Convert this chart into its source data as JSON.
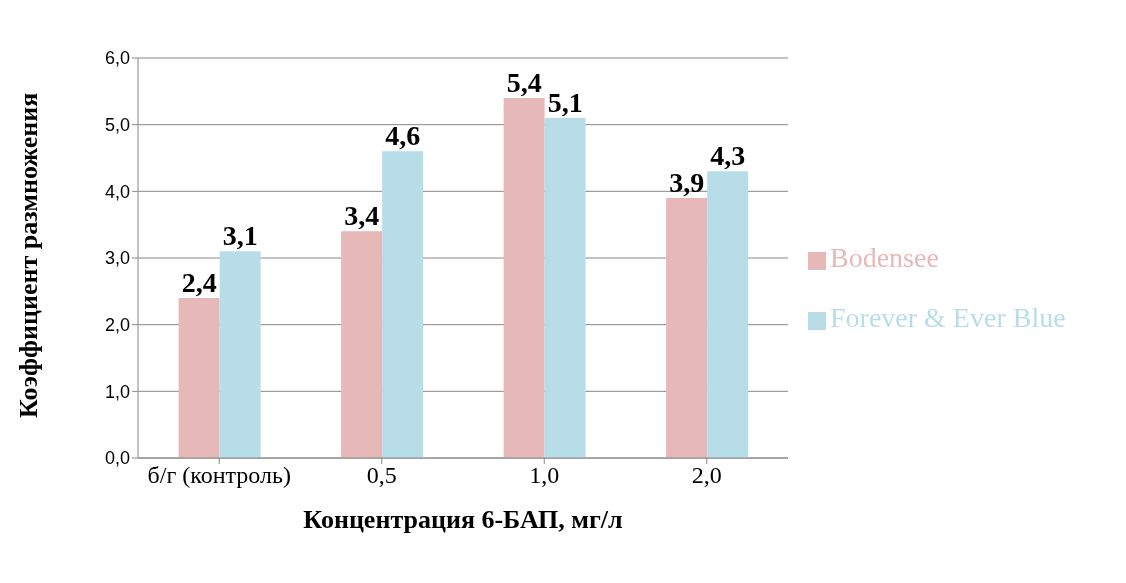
{
  "chart_data": {
    "type": "bar",
    "xlabel": "Концентрация 6-БАП, мг/л",
    "ylabel": "Коэффициент размножения",
    "categories": [
      "б/г (контроль)",
      "0,5",
      "1,0",
      "2,0"
    ],
    "series": [
      {
        "name": "Bodensee",
        "color": "#e6b9b8",
        "values": [
          2.4,
          3.4,
          5.4,
          3.9
        ],
        "value_labels": [
          "2,4",
          "3,4",
          "5,4",
          "3,9"
        ]
      },
      {
        "name": "Forever & Ever Blue",
        "color": "#b7dee8",
        "values": [
          3.1,
          4.6,
          5.1,
          4.3
        ],
        "value_labels": [
          "3,1",
          "4,6",
          "5,1",
          "4,3"
        ]
      }
    ],
    "ylim": [
      0,
      6
    ],
    "yticks": [
      {
        "value": 0,
        "label": "0,0"
      },
      {
        "value": 1,
        "label": "1,0"
      },
      {
        "value": 2,
        "label": "2,0"
      },
      {
        "value": 3,
        "label": "3,0"
      },
      {
        "value": 4,
        "label": "4,0"
      },
      {
        "value": 5,
        "label": "5,0"
      },
      {
        "value": 6,
        "label": "6,0"
      }
    ],
    "grid": "y",
    "legend": "right"
  }
}
